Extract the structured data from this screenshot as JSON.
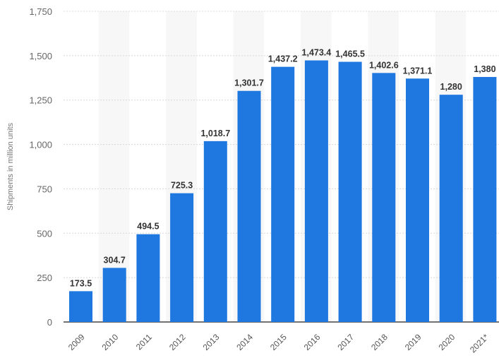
{
  "chart_data": {
    "type": "bar",
    "title": "",
    "xlabel": "",
    "ylabel": "Shipments in million units",
    "categories": [
      "2009",
      "2010",
      "2011",
      "2012",
      "2013",
      "2014",
      "2015",
      "2016",
      "2017",
      "2018",
      "2019",
      "2020",
      "2021*"
    ],
    "values": [
      173.5,
      304.7,
      494.5,
      725.3,
      1018.7,
      1301.7,
      1437.2,
      1473.4,
      1465.5,
      1402.6,
      1371.1,
      1280,
      1380
    ],
    "data_labels": [
      "173.5",
      "304.7",
      "494.5",
      "725.3",
      "1,018.7",
      "1,301.7",
      "1,437.2",
      "1,473.4",
      "1,465.5",
      "1,402.6",
      "1,371.1",
      "1,280",
      "1,380"
    ],
    "yticks": [
      "0",
      "250",
      "500",
      "750",
      "1,000",
      "1,250",
      "1,500",
      "1,750"
    ],
    "ytick_values": [
      0,
      250,
      500,
      750,
      1000,
      1250,
      1500,
      1750
    ],
    "ylim": [
      0,
      1750
    ],
    "grid": true,
    "legend": "none",
    "colors": {
      "bar": "#1f77e0",
      "stripe": "#f7f7f7",
      "grid": "#d8d8d8",
      "axis": "#444444"
    }
  }
}
